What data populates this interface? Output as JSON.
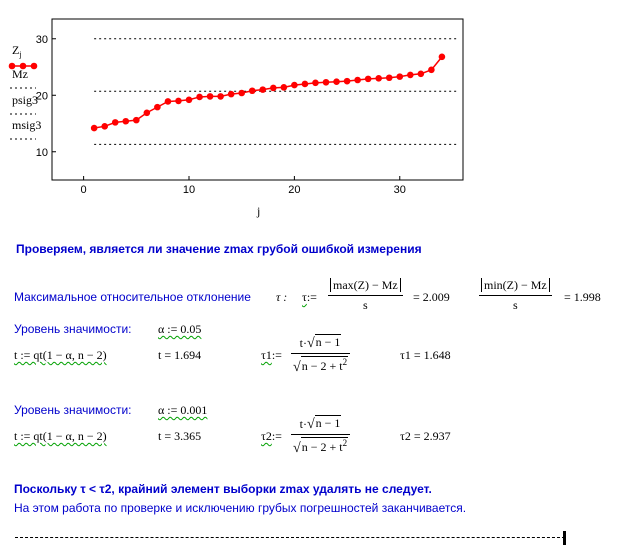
{
  "chart_data": {
    "type": "scatter",
    "x_ticks": [
      "0",
      "10",
      "20",
      "30"
    ],
    "y_ticks": [
      "10",
      "20",
      "30"
    ],
    "xlim": [
      -3,
      36
    ],
    "ylim": [
      5,
      33.5
    ],
    "xlabel": "j",
    "legend": [
      {
        "label_main": "Z",
        "label_sub": "j",
        "style": "line-markers",
        "color": "#ff0000"
      },
      {
        "label_main": "Mz",
        "style": "dotted",
        "color": "#000000"
      },
      {
        "label_main": "psig3",
        "style": "dotted",
        "color": "#000000"
      },
      {
        "label_main": "msig3",
        "style": "dotted",
        "color": "#000000"
      }
    ],
    "series": [
      {
        "x": [
          1,
          2,
          3,
          4,
          5,
          6,
          7,
          8,
          9,
          10,
          11,
          12,
          13,
          14,
          15,
          16,
          17,
          18,
          19,
          20,
          21,
          22,
          23,
          24,
          25,
          26,
          27,
          28,
          29,
          30,
          31,
          32,
          33,
          34
        ],
        "values": [
          14.2,
          14.5,
          15.2,
          15.4,
          15.6,
          16.9,
          17.9,
          18.9,
          19.0,
          19.2,
          19.7,
          19.8,
          19.8,
          20.2,
          20.4,
          20.8,
          21.0,
          21.3,
          21.4,
          21.8,
          22.0,
          22.2,
          22.3,
          22.4,
          22.5,
          22.7,
          22.9,
          23.0,
          23.1,
          23.3,
          23.6,
          23.8,
          24.5,
          26.8
        ]
      },
      {
        "values": [
          20.7
        ]
      },
      {
        "values": [
          30.0
        ]
      },
      {
        "values": [
          11.3
        ]
      }
    ]
  },
  "heading": "Проверяем, является ли значение zmax грубой ошибкой измерения",
  "max_dev": {
    "label": "Максимальное относительное отклонение",
    "tau_symbol": "τ :",
    "tau_name": "τ",
    "assign": ":=",
    "num1": "max(Z) − Mz",
    "den1": "s",
    "result1": "= 2.009",
    "num2": "min(Z) − Mz",
    "den2": "s",
    "result2": "= 1.998"
  },
  "sig1": {
    "label": "Уровень значимости:",
    "alpha_def": "α := 0.05",
    "t_def": "t := qt(1 − α, n − 2)",
    "t_val": "t = 1.694",
    "tau_name": "τ1",
    "assign": ":=",
    "num_t": "t·",
    "num_root": "n − 1",
    "den_root": "n − 2 + t",
    "den_exp": "2",
    "tau_val": "τ1 = 1.648"
  },
  "sig2": {
    "label": "Уровень значимости:",
    "alpha_def": "α := 0.001",
    "t_def": "t := qt(1 − α, n − 2)",
    "t_val": "t = 3.365",
    "tau_name": "τ2",
    "assign": ":=",
    "num_t": "t·",
    "num_root": "n − 1",
    "den_root": "n − 2 + t",
    "den_exp": "2",
    "tau_val": "τ2 = 2.937"
  },
  "conclusion": "Поскольку  τ  <  τ2,  крайний элемент выборки  zmax  удалять не следует.",
  "final_note": "На этом работа по проверке и исключению грубых погрешностей заканчивается."
}
